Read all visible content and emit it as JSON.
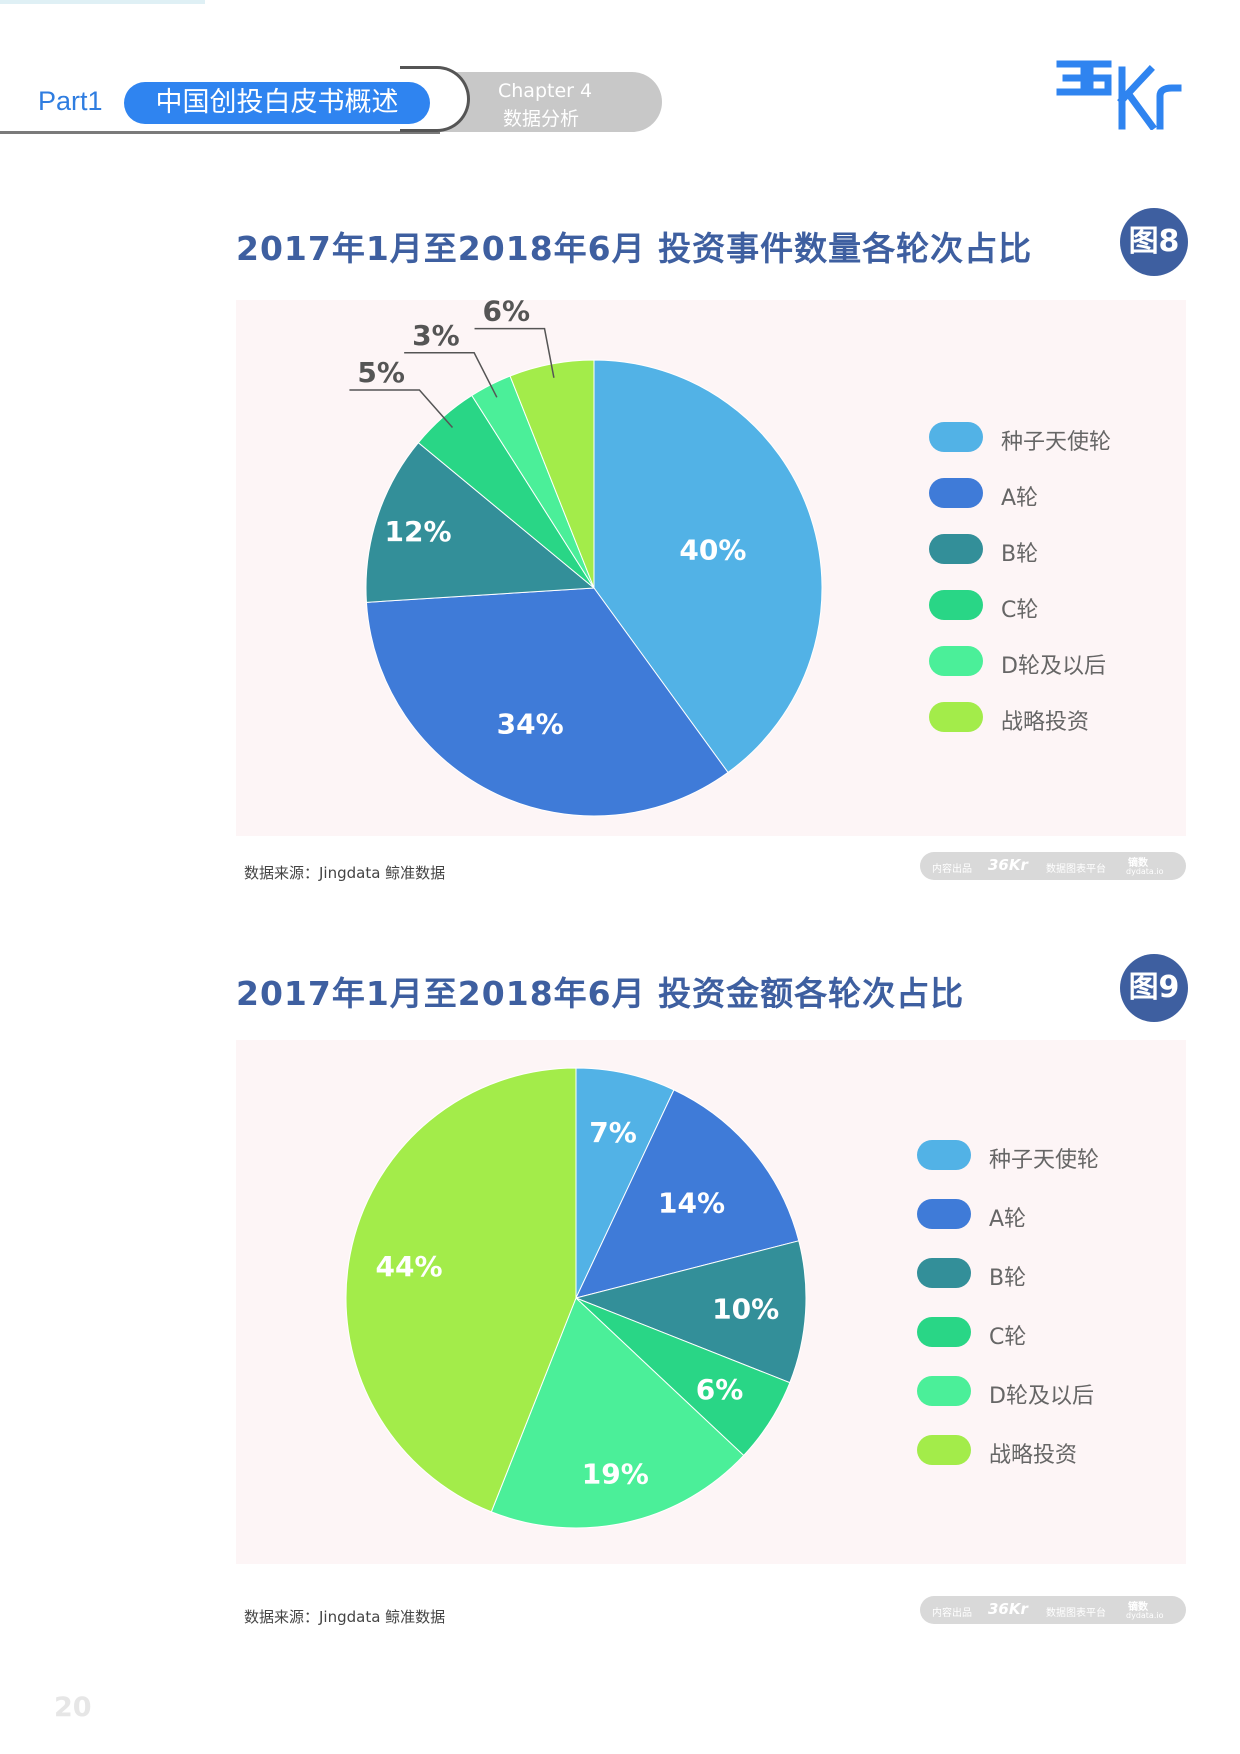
{
  "header": {
    "part_label": "Part1",
    "part_title": "中国创投白皮书概述",
    "chapter_label": "Chapter  4",
    "chapter_sub": "数据分析",
    "logo_text": "36Kr"
  },
  "colors": {
    "种子天使轮": "#52b2e6",
    "A轮": "#3f7bd8",
    "B轮": "#338f99",
    "C轮": "#29d686",
    "D轮及以后": "#4bef99",
    "战略投资": "#a3ec4a",
    "title_blue": "#3e5fa0",
    "panel_bg": "#fdf5f6"
  },
  "figures": [
    {
      "title": "2017年1月至2018年6月    投资事件数量各轮次占比",
      "badge": "图8",
      "source": "数据来源：Jingdata 鲸准数据",
      "footer_left": "内容出品",
      "footer_logo": "36Kr",
      "footer_mid": "数据图表平台",
      "footer_right": "镝数",
      "footer_url": "dydata.io"
    },
    {
      "title": "2017年1月至2018年6月    投资金额各轮次占比",
      "badge": "图9",
      "source": "数据来源：Jingdata 鲸准数据",
      "footer_left": "内容出品",
      "footer_logo": "36Kr",
      "footer_mid": "数据图表平台",
      "footer_right": "镝数",
      "footer_url": "dydata.io"
    }
  ],
  "chart_data": [
    {
      "type": "pie",
      "title": "2017年1月至2018年6月    投资事件数量各轮次占比",
      "categories": [
        "种子天使轮",
        "A轮",
        "B轮",
        "C轮",
        "D轮及以后",
        "战略投资"
      ],
      "values": [
        40,
        34,
        12,
        5,
        3,
        6
      ],
      "labels": [
        "40%",
        "34%",
        "12%",
        "5%",
        "3%",
        "6%"
      ],
      "legend": "right"
    },
    {
      "type": "pie",
      "title": "2017年1月至2018年6月    投资金额各轮次占比",
      "categories": [
        "种子天使轮",
        "A轮",
        "B轮",
        "C轮",
        "D轮及以后",
        "战略投资"
      ],
      "values": [
        7,
        14,
        10,
        6,
        19,
        44
      ],
      "labels": [
        "7%",
        "14%",
        "10%",
        "6%",
        "19%",
        "44%"
      ],
      "legend": "right"
    }
  ],
  "page_number": "20"
}
